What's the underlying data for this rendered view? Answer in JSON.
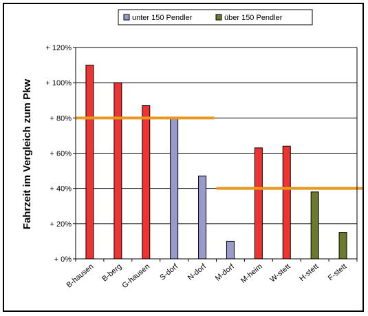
{
  "chart_data": {
    "type": "bar",
    "ylabel": "Fahrzeit im Vergleich zum Pkw",
    "ylim": [
      0,
      120
    ],
    "yticks": [
      0,
      20,
      40,
      60,
      80,
      100,
      120
    ],
    "ytick_labels": [
      "+ 0%",
      "+ 20%",
      "+ 40%",
      "+ 60%",
      "+ 80%",
      "+ 100%",
      "+ 120%"
    ],
    "grid": true,
    "legend_position": "top",
    "categories": [
      "B-hausen",
      "B-berg",
      "G-hausen",
      "S-dorf",
      "N-dorf",
      "M-dorf",
      "M-heim",
      "W-stett",
      "H-stett",
      "F-stett"
    ],
    "values": [
      110,
      100,
      87,
      80,
      47,
      10,
      63,
      64,
      38,
      15
    ],
    "bar_groups": [
      "red",
      "red",
      "red",
      "blue",
      "blue",
      "blue",
      "red",
      "red",
      "green",
      "green"
    ],
    "legend": [
      {
        "label": "unter 150 Pendler",
        "color": "#9999cc"
      },
      {
        "label": "über 150 Pendler",
        "color": "#6b7a2e"
      }
    ],
    "reference_lines": [
      {
        "value": 80,
        "from_category": 0,
        "to_category": 4
      },
      {
        "value": 40,
        "from_category": 5,
        "to_category": 9
      }
    ],
    "colors": {
      "red": "#ee3333",
      "blue": "#9999cc",
      "green": "#6b7a2e",
      "reference": "#e8981f"
    }
  }
}
